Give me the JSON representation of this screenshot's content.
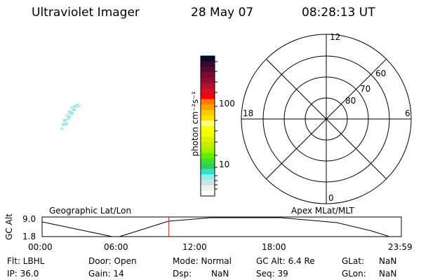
{
  "header": {
    "title": "Ultraviolet Imager",
    "date": "28 May 07",
    "time": "08:28:13 UT"
  },
  "colorbar": {
    "label": "photon cm⁻²s⁻¹",
    "ticks": [
      "100",
      "10"
    ],
    "colors": [
      "#0a0a30",
      "#3a0a2c",
      "#5a0a32",
      "#780a30",
      "#940a30",
      "#b0102c",
      "#d0102c",
      "#ff0000",
      "#ff7a00",
      "#ffa000",
      "#ffc800",
      "#ffe000",
      "#ffff80",
      "#ffff00",
      "#f0ff00",
      "#e0f000",
      "#c0f000",
      "#a0f000",
      "#60f000",
      "#40e030",
      "#30d060",
      "#30e0d0",
      "#90f0f0",
      "#d0e0e0",
      "#e8f4ee",
      "#ffffff"
    ]
  },
  "polar": {
    "mlt_labels": {
      "top": "12",
      "right": "6",
      "bottom": "0",
      "left": "18"
    },
    "lat_labels": [
      "80",
      "70",
      "60"
    ]
  },
  "orbit": {
    "left_label": "Geographic Lat/Lon",
    "right_label": "Apex MLat/MLT",
    "ylabel": "GC Alt",
    "yticks": [
      "9.0",
      "1.8"
    ],
    "xticks": [
      "00:00",
      "06:00",
      "12:00",
      "18:00",
      "23:59"
    ],
    "current_time_hours": 8.47,
    "marker_color": "#ff0000"
  },
  "info": {
    "flt": "Flt: LBHL",
    "ip": "IP: 36.0",
    "door": "Door: Open",
    "gain": "Gain: 14",
    "mode": "Mode: Normal",
    "dsp_label": "Dsp:",
    "dsp_value": "NaN",
    "gcalt": "GC Alt: 6.4 Re",
    "seq": "Seq: 39",
    "glat_label": "GLat:",
    "glat_value": "NaN",
    "glon_label": "GLon:",
    "glon_value": "NaN"
  }
}
